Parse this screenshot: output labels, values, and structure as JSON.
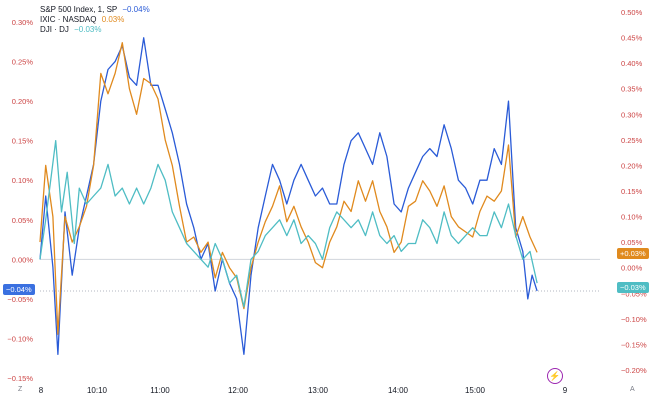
{
  "legend": [
    {
      "name": "S&P 500 Index, 1, SP",
      "value": "−0.04%",
      "color": "#2a5bd7"
    },
    {
      "name": "IXIC · NASDAQ",
      "value": "0.03%",
      "color": "#e08a1e"
    },
    {
      "name": "DJI · DJ",
      "value": "−0.03%",
      "color": "#4fbdc4"
    }
  ],
  "badges": {
    "left": "−0.04%",
    "right_orange": "+0.03%",
    "right_teal": "−0.03%"
  },
  "corner": {
    "left": "Z",
    "right": "A"
  },
  "chart_data": {
    "type": "line",
    "x_ticks": [
      "8",
      "10:10",
      "11:00",
      "12:00",
      "13:00",
      "14:00",
      "15:00",
      "9"
    ],
    "y_ticks_left": [
      "0.30%",
      "0.25%",
      "0.20%",
      "0.15%",
      "0.10%",
      "0.05%",
      "0.00%",
      "−0.05%",
      "−0.10%",
      "−0.15%"
    ],
    "y_ticks_right": [
      "0.50%",
      "0.45%",
      "0.40%",
      "0.35%",
      "0.30%",
      "0.25%",
      "0.20%",
      "0.15%",
      "0.10%",
      "0.05%",
      "0.00%",
      "−0.05%",
      "−0.10%",
      "−0.15%",
      "−0.20%"
    ],
    "ylim_left": [
      -0.15,
      0.3
    ],
    "ylim_right": [
      -0.2,
      0.5
    ],
    "x_range": [
      0,
      7.2
    ],
    "series": [
      {
        "name": "S&P 500 Index, 1, SP",
        "axis": "left",
        "color": "#2a5bd7",
        "points": [
          [
            0,
            0.0
          ],
          [
            0.08,
            0.08
          ],
          [
            0.18,
            -0.01
          ],
          [
            0.25,
            -0.12
          ],
          [
            0.35,
            0.06
          ],
          [
            0.45,
            -0.02
          ],
          [
            0.55,
            0.04
          ],
          [
            0.65,
            0.08
          ],
          [
            0.75,
            0.12
          ],
          [
            0.85,
            0.2
          ],
          [
            0.95,
            0.24
          ],
          [
            1.05,
            0.25
          ],
          [
            1.15,
            0.27
          ],
          [
            1.25,
            0.23
          ],
          [
            1.35,
            0.22
          ],
          [
            1.45,
            0.28
          ],
          [
            1.55,
            0.22
          ],
          [
            1.65,
            0.22
          ],
          [
            1.75,
            0.19
          ],
          [
            1.85,
            0.16
          ],
          [
            1.95,
            0.12
          ],
          [
            2.05,
            0.07
          ],
          [
            2.15,
            0.04
          ],
          [
            2.25,
            0.0
          ],
          [
            2.35,
            0.02
          ],
          [
            2.45,
            -0.04
          ],
          [
            2.55,
            0.0
          ],
          [
            2.65,
            -0.03
          ],
          [
            2.75,
            -0.05
          ],
          [
            2.85,
            -0.12
          ],
          [
            2.95,
            -0.02
          ],
          [
            3.05,
            0.04
          ],
          [
            3.15,
            0.08
          ],
          [
            3.25,
            0.12
          ],
          [
            3.35,
            0.1
          ],
          [
            3.45,
            0.07
          ],
          [
            3.55,
            0.1
          ],
          [
            3.65,
            0.12
          ],
          [
            3.75,
            0.1
          ],
          [
            3.85,
            0.08
          ],
          [
            3.95,
            0.09
          ],
          [
            4.05,
            0.07
          ],
          [
            4.15,
            0.07
          ],
          [
            4.25,
            0.12
          ],
          [
            4.35,
            0.15
          ],
          [
            4.45,
            0.16
          ],
          [
            4.55,
            0.14
          ],
          [
            4.65,
            0.12
          ],
          [
            4.75,
            0.16
          ],
          [
            4.85,
            0.13
          ],
          [
            4.95,
            0.07
          ],
          [
            5.05,
            0.06
          ],
          [
            5.15,
            0.09
          ],
          [
            5.25,
            0.11
          ],
          [
            5.35,
            0.13
          ],
          [
            5.45,
            0.14
          ],
          [
            5.55,
            0.13
          ],
          [
            5.65,
            0.17
          ],
          [
            5.75,
            0.14
          ],
          [
            5.85,
            0.1
          ],
          [
            5.95,
            0.09
          ],
          [
            6.05,
            0.07
          ],
          [
            6.15,
            0.1
          ],
          [
            6.25,
            0.1
          ],
          [
            6.35,
            0.14
          ],
          [
            6.45,
            0.12
          ],
          [
            6.55,
            0.2
          ],
          [
            6.65,
            0.04
          ],
          [
            6.75,
            0.01
          ],
          [
            6.82,
            -0.05
          ],
          [
            6.88,
            -0.02
          ],
          [
            6.95,
            -0.04
          ]
        ]
      },
      {
        "name": "IXIC · NASDAQ",
        "axis": "right",
        "color": "#e08a1e",
        "points": [
          [
            0,
            0.05
          ],
          [
            0.08,
            0.2
          ],
          [
            0.18,
            0.1
          ],
          [
            0.25,
            -0.13
          ],
          [
            0.35,
            0.1
          ],
          [
            0.45,
            0.05
          ],
          [
            0.55,
            0.08
          ],
          [
            0.65,
            0.12
          ],
          [
            0.75,
            0.2
          ],
          [
            0.85,
            0.38
          ],
          [
            0.95,
            0.34
          ],
          [
            1.05,
            0.38
          ],
          [
            1.15,
            0.44
          ],
          [
            1.25,
            0.35
          ],
          [
            1.35,
            0.3
          ],
          [
            1.45,
            0.37
          ],
          [
            1.55,
            0.36
          ],
          [
            1.65,
            0.33
          ],
          [
            1.75,
            0.25
          ],
          [
            1.85,
            0.2
          ],
          [
            1.95,
            0.12
          ],
          [
            2.05,
            0.05
          ],
          [
            2.15,
            0.06
          ],
          [
            2.25,
            0.03
          ],
          [
            2.35,
            0.05
          ],
          [
            2.45,
            -0.02
          ],
          [
            2.55,
            0.03
          ],
          [
            2.65,
            0.0
          ],
          [
            2.75,
            -0.02
          ],
          [
            2.85,
            -0.08
          ],
          [
            2.95,
            0.0
          ],
          [
            3.05,
            0.05
          ],
          [
            3.15,
            0.09
          ],
          [
            3.25,
            0.12
          ],
          [
            3.35,
            0.16
          ],
          [
            3.45,
            0.09
          ],
          [
            3.55,
            0.12
          ],
          [
            3.65,
            0.08
          ],
          [
            3.75,
            0.05
          ],
          [
            3.85,
            0.01
          ],
          [
            3.95,
            0.0
          ],
          [
            4.05,
            0.05
          ],
          [
            4.15,
            0.08
          ],
          [
            4.25,
            0.13
          ],
          [
            4.35,
            0.11
          ],
          [
            4.45,
            0.17
          ],
          [
            4.55,
            0.13
          ],
          [
            4.65,
            0.17
          ],
          [
            4.75,
            0.11
          ],
          [
            4.85,
            0.08
          ],
          [
            4.95,
            0.03
          ],
          [
            5.05,
            0.05
          ],
          [
            5.15,
            0.12
          ],
          [
            5.25,
            0.13
          ],
          [
            5.35,
            0.17
          ],
          [
            5.45,
            0.15
          ],
          [
            5.55,
            0.12
          ],
          [
            5.65,
            0.16
          ],
          [
            5.75,
            0.1
          ],
          [
            5.85,
            0.08
          ],
          [
            5.95,
            0.07
          ],
          [
            6.05,
            0.06
          ],
          [
            6.15,
            0.11
          ],
          [
            6.25,
            0.14
          ],
          [
            6.35,
            0.13
          ],
          [
            6.45,
            0.15
          ],
          [
            6.55,
            0.24
          ],
          [
            6.65,
            0.06
          ],
          [
            6.75,
            0.1
          ],
          [
            6.85,
            0.06
          ],
          [
            6.95,
            0.03
          ]
        ]
      },
      {
        "name": "DJI · DJ",
        "axis": "left",
        "color": "#4fbdc4",
        "points": [
          [
            0,
            0.0
          ],
          [
            0.08,
            0.05
          ],
          [
            0.15,
            0.1
          ],
          [
            0.22,
            0.15
          ],
          [
            0.3,
            0.06
          ],
          [
            0.38,
            0.11
          ],
          [
            0.48,
            0.02
          ],
          [
            0.55,
            0.09
          ],
          [
            0.65,
            0.07
          ],
          [
            0.75,
            0.08
          ],
          [
            0.85,
            0.09
          ],
          [
            0.95,
            0.12
          ],
          [
            1.05,
            0.08
          ],
          [
            1.15,
            0.09
          ],
          [
            1.25,
            0.07
          ],
          [
            1.35,
            0.09
          ],
          [
            1.45,
            0.07
          ],
          [
            1.55,
            0.09
          ],
          [
            1.65,
            0.12
          ],
          [
            1.75,
            0.1
          ],
          [
            1.85,
            0.06
          ],
          [
            1.95,
            0.04
          ],
          [
            2.05,
            0.02
          ],
          [
            2.15,
            0.01
          ],
          [
            2.25,
            0.0
          ],
          [
            2.35,
            -0.01
          ],
          [
            2.45,
            0.02
          ],
          [
            2.55,
            0.0
          ],
          [
            2.65,
            -0.03
          ],
          [
            2.75,
            -0.02
          ],
          [
            2.85,
            -0.06
          ],
          [
            2.95,
            0.0
          ],
          [
            3.05,
            0.01
          ],
          [
            3.15,
            0.03
          ],
          [
            3.25,
            0.04
          ],
          [
            3.35,
            0.05
          ],
          [
            3.45,
            0.03
          ],
          [
            3.55,
            0.05
          ],
          [
            3.65,
            0.02
          ],
          [
            3.75,
            0.03
          ],
          [
            3.85,
            0.02
          ],
          [
            3.95,
            0.0
          ],
          [
            4.05,
            0.04
          ],
          [
            4.15,
            0.06
          ],
          [
            4.25,
            0.05
          ],
          [
            4.35,
            0.04
          ],
          [
            4.45,
            0.05
          ],
          [
            4.55,
            0.03
          ],
          [
            4.65,
            0.06
          ],
          [
            4.75,
            0.03
          ],
          [
            4.85,
            0.02
          ],
          [
            4.95,
            0.03
          ],
          [
            5.05,
            0.01
          ],
          [
            5.15,
            0.02
          ],
          [
            5.25,
            0.02
          ],
          [
            5.35,
            0.05
          ],
          [
            5.45,
            0.04
          ],
          [
            5.55,
            0.02
          ],
          [
            5.65,
            0.06
          ],
          [
            5.75,
            0.03
          ],
          [
            5.85,
            0.02
          ],
          [
            5.95,
            0.03
          ],
          [
            6.05,
            0.04
          ],
          [
            6.15,
            0.03
          ],
          [
            6.25,
            0.03
          ],
          [
            6.35,
            0.06
          ],
          [
            6.45,
            0.04
          ],
          [
            6.55,
            0.07
          ],
          [
            6.65,
            0.03
          ],
          [
            6.75,
            0.0
          ],
          [
            6.85,
            0.01
          ],
          [
            6.95,
            -0.03
          ]
        ]
      }
    ]
  }
}
